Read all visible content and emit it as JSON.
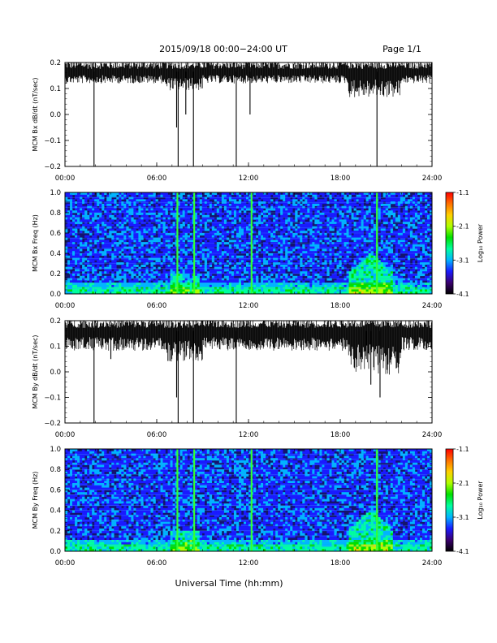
{
  "header": {
    "date_range": "2015/09/18  00:00−24:00 UT",
    "page": "Page 1/1"
  },
  "x_axis": {
    "label": "Universal Time (hh:mm)",
    "ticks": [
      "00:00",
      "06:00",
      "12:00",
      "18:00",
      "24:00"
    ],
    "range_hours": [
      0,
      24
    ]
  },
  "colorbar": {
    "label": "Log₁₀ Power",
    "ticks": [
      "-1.1",
      "-2.1",
      "-3.1",
      "-4.1"
    ],
    "range": [
      -4.1,
      -1.1
    ],
    "colors": [
      "#000000",
      "#3b0070",
      "#1a1aff",
      "#00b4ff",
      "#00ffa0",
      "#00e000",
      "#b0ff00",
      "#ffd000",
      "#ff7000",
      "#ff0000"
    ]
  },
  "chart_data": [
    {
      "type": "line",
      "ylabel": "MCM Bx dB/dt (nT/sec)",
      "ylim": [
        -0.2,
        0.2
      ],
      "yticks": [
        "0.2",
        "0.1",
        "0.0",
        "−0.1",
        "−0.2"
      ],
      "baseline": 0.165,
      "noise_band": [
        0.13,
        0.2
      ],
      "spikes": [
        {
          "t": 1.9,
          "y": -0.2
        },
        {
          "t": 7.3,
          "y": -0.05
        },
        {
          "t": 7.4,
          "y": -0.2
        },
        {
          "t": 7.9,
          "y": 0.0
        },
        {
          "t": 8.4,
          "y": -0.2
        },
        {
          "t": 11.2,
          "y": -0.2
        },
        {
          "t": 12.1,
          "y": 0.0
        },
        {
          "t": 20.4,
          "y": -0.2
        }
      ]
    },
    {
      "type": "heatmap",
      "ylabel": "MCM Bx Freq (Hz)",
      "ylim": [
        0.0,
        1.0
      ],
      "yticks": [
        "1.0",
        "0.8",
        "0.6",
        "0.4",
        "0.2",
        "0.0"
      ],
      "bright_times_hours": [
        7.35,
        8.45,
        12.2,
        20.4
      ],
      "activity_patch": {
        "t": [
          18.5,
          21.5
        ],
        "f": [
          0.0,
          0.4
        ]
      }
    },
    {
      "type": "line",
      "ylabel": "MCM By dB/dt (nT/sec)",
      "ylim": [
        -0.2,
        0.2
      ],
      "yticks": [
        "0.2",
        "0.1",
        "0.0",
        "−0.1",
        "−0.2"
      ],
      "baseline": 0.16,
      "noise_band": [
        0.1,
        0.2
      ],
      "spikes": [
        {
          "t": 1.9,
          "y": -0.2
        },
        {
          "t": 3.0,
          "y": 0.05
        },
        {
          "t": 7.3,
          "y": -0.1
        },
        {
          "t": 7.4,
          "y": -0.2
        },
        {
          "t": 8.4,
          "y": -0.2
        },
        {
          "t": 11.2,
          "y": -0.2
        },
        {
          "t": 19.7,
          "y": 0.05
        },
        {
          "t": 20.0,
          "y": -0.05
        },
        {
          "t": 20.6,
          "y": -0.1
        }
      ]
    },
    {
      "type": "heatmap",
      "ylabel": "MCM By Freq (Hz)",
      "ylim": [
        0.0,
        1.0
      ],
      "yticks": [
        "1.0",
        "0.8",
        "0.6",
        "0.4",
        "0.2",
        "0.0"
      ],
      "bright_times_hours": [
        7.35,
        8.45,
        12.2,
        20.4
      ],
      "activity_patch": {
        "t": [
          18.5,
          21.5
        ],
        "f": [
          0.0,
          0.4
        ]
      }
    }
  ]
}
